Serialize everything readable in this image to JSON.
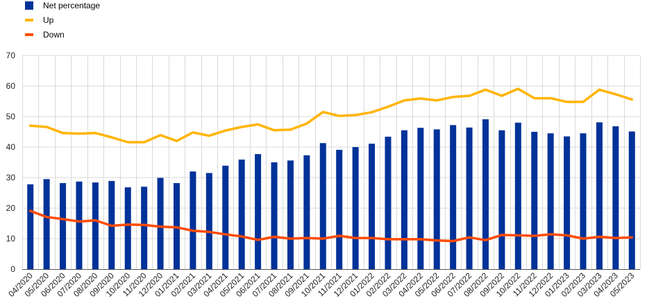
{
  "chart_data": {
    "type": "bar",
    "title": "",
    "xlabel": "",
    "ylabel": "",
    "ylim": [
      0,
      70
    ],
    "yticks": [
      0,
      10,
      20,
      30,
      40,
      50,
      60,
      70
    ],
    "grid": true,
    "legend_position": "top-left",
    "categories": [
      "04/2020",
      "05/2020",
      "06/2020",
      "07/2020",
      "08/2020",
      "09/2020",
      "10/2020",
      "11/2020",
      "12/2020",
      "01/2021",
      "02/2021",
      "03/2021",
      "04/2021",
      "05/2021",
      "06/2021",
      "07/2021",
      "08/2021",
      "09/2021",
      "10/2021",
      "11/2021",
      "12/2021",
      "01/2022",
      "02/2022",
      "03/2022",
      "04/2022",
      "05/2022",
      "06/2022",
      "07/2022",
      "08/2022",
      "09/2022",
      "10/2022",
      "11/2022",
      "12/2022",
      "01/2023",
      "02/2023",
      "03/2023",
      "04/2023",
      "05/2023"
    ],
    "series": [
      {
        "name": "Net percentage",
        "type": "bar",
        "color": "#003299",
        "values": [
          27.8,
          29.5,
          28.2,
          28.7,
          28.4,
          28.9,
          26.8,
          27.0,
          29.9,
          28.2,
          32.0,
          31.5,
          33.9,
          35.9,
          37.7,
          35.0,
          35.6,
          37.3,
          41.3,
          39.1,
          40.0,
          41.1,
          43.4,
          45.5,
          46.3,
          45.8,
          47.2,
          46.4,
          49.1,
          45.5,
          48.0,
          45.0,
          44.5,
          43.5,
          44.5,
          48.1,
          46.8,
          45.1
        ]
      },
      {
        "name": "Up",
        "type": "line",
        "color": "#FFB400",
        "values": [
          47.0,
          46.6,
          44.6,
          44.4,
          44.6,
          43.2,
          41.6,
          41.6,
          43.9,
          42.0,
          44.8,
          43.7,
          45.4,
          46.6,
          47.4,
          45.5,
          45.7,
          47.7,
          51.5,
          50.2,
          50.5,
          51.4,
          53.2,
          55.3,
          55.9,
          55.3,
          56.4,
          56.8,
          58.8,
          56.8,
          59.1,
          56.0,
          56.0,
          54.8,
          54.8,
          58.8,
          57.3,
          55.6
        ]
      },
      {
        "name": "Down",
        "type": "line",
        "color": "#FF4B00",
        "values": [
          19.1,
          17.1,
          16.4,
          15.6,
          16.0,
          14.2,
          14.6,
          14.5,
          13.9,
          13.7,
          12.6,
          12.2,
          11.4,
          10.7,
          9.6,
          10.6,
          10.0,
          10.2,
          10.0,
          10.9,
          10.2,
          10.2,
          9.8,
          9.8,
          9.8,
          9.4,
          9.2,
          10.4,
          9.5,
          11.2,
          11.1,
          10.9,
          11.4,
          11.1,
          10.0,
          10.6,
          10.2,
          10.4
        ]
      }
    ]
  }
}
